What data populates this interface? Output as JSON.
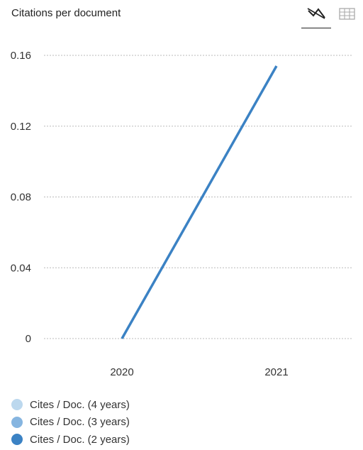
{
  "header": {
    "title": "Citations per document",
    "line_view_icon": "line-chart-icon",
    "table_view_icon": "table-grid-icon"
  },
  "colors": {
    "series_4y": "#bcd8ee",
    "series_3y": "#86b5e0",
    "series_2y": "#3b82c4",
    "grid": "#bbbbbb"
  },
  "chart_data": {
    "type": "line",
    "title": "Citations per document",
    "xlabel": "",
    "ylabel": "",
    "categories": [
      "2020",
      "2021"
    ],
    "ylim": [
      0,
      0.16
    ],
    "yticks": [
      0,
      0.04,
      0.08,
      0.12,
      0.16
    ],
    "ytick_labels": [
      "0",
      "0.04",
      "0.08",
      "0.12",
      "0.16"
    ],
    "grid": true,
    "legend_position": "bottom",
    "series": [
      {
        "name": "Cites / Doc. (4 years)",
        "values": [
          null,
          null
        ],
        "color": "#bcd8ee"
      },
      {
        "name": "Cites / Doc. (3 years)",
        "values": [
          null,
          null
        ],
        "color": "#86b5e0"
      },
      {
        "name": "Cites / Doc. (2 years)",
        "values": [
          0,
          0.154
        ],
        "color": "#3b82c4"
      }
    ]
  }
}
